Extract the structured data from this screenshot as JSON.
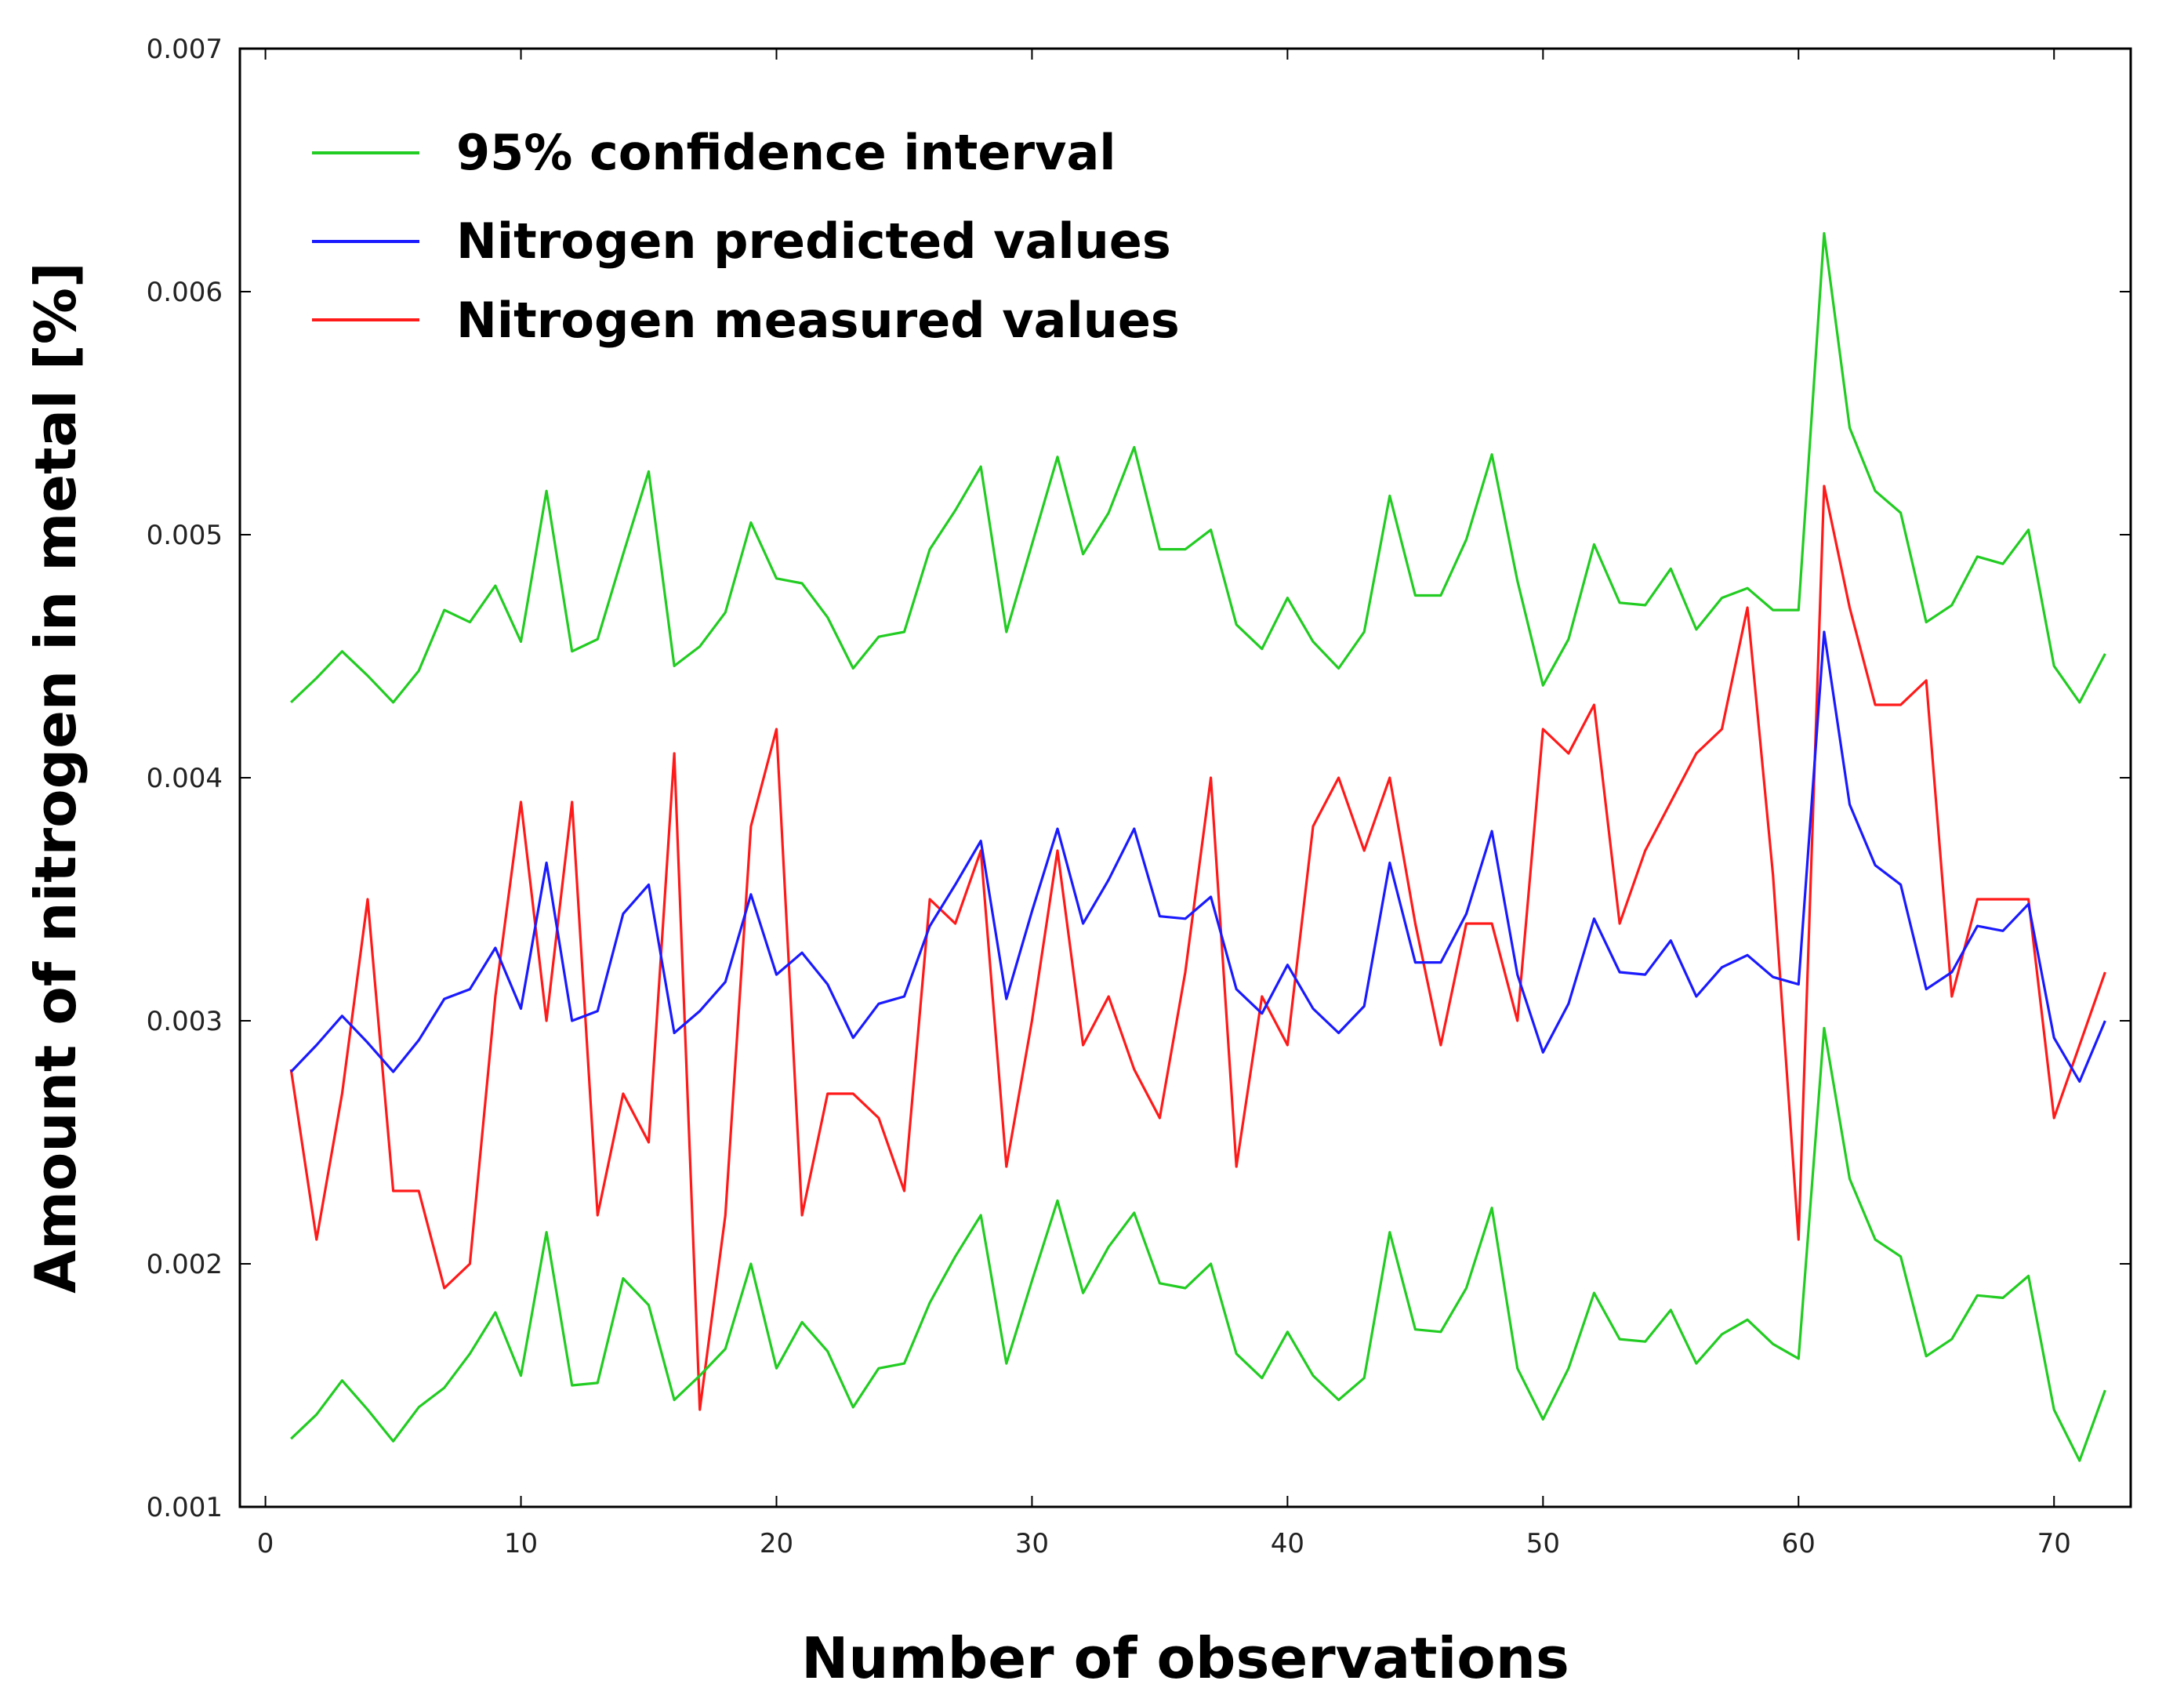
{
  "chart_data": {
    "type": "line",
    "title": "",
    "xlabel": "Number of observations",
    "ylabel": "Amount of nitrogen in metal [%]",
    "xlim": [
      -1,
      73
    ],
    "ylim": [
      0.001,
      0.007
    ],
    "x_ticks": [
      0,
      10,
      20,
      30,
      40,
      50,
      60,
      70
    ],
    "x_tick_labels": [
      "0",
      "10",
      "20",
      "30",
      "40",
      "50",
      "60",
      "70"
    ],
    "y_ticks": [
      0.001,
      0.002,
      0.003,
      0.004,
      0.005,
      0.006,
      0.007
    ],
    "y_tick_labels": [
      "0.001",
      "0.002",
      "0.003",
      "0.004",
      "0.005",
      "0.006",
      "0.007"
    ],
    "grid": false,
    "legend_position": "top-left",
    "x": [
      1,
      2,
      3,
      4,
      5,
      6,
      7,
      8,
      9,
      10,
      11,
      12,
      13,
      14,
      15,
      16,
      17,
      18,
      19,
      20,
      21,
      22,
      23,
      24,
      25,
      26,
      27,
      28,
      29,
      30,
      31,
      32,
      33,
      34,
      35,
      36,
      37,
      38,
      39,
      40,
      41,
      42,
      43,
      44,
      45,
      46,
      47,
      48,
      49,
      50,
      51,
      52,
      53,
      54,
      55,
      56,
      57,
      58,
      59,
      60,
      61,
      62,
      63,
      64,
      65,
      66,
      67,
      68,
      69,
      70,
      71,
      72
    ],
    "series": [
      {
        "name": "95% confidence interval",
        "key": "ci_upper",
        "color": "#22cc22",
        "in_legend": true,
        "values": [
          0.00431,
          0.00441,
          0.00452,
          0.00442,
          0.00431,
          0.00444,
          0.00469,
          0.00464,
          0.00479,
          0.00456,
          0.00518,
          0.00452,
          0.00457,
          0.00492,
          0.00526,
          0.00446,
          0.00454,
          0.00468,
          0.00505,
          0.00482,
          0.0048,
          0.00466,
          0.00445,
          0.00458,
          0.0046,
          0.00494,
          0.0051,
          0.00528,
          0.0046,
          0.00496,
          0.00532,
          0.00492,
          0.00509,
          0.00536,
          0.00494,
          0.00494,
          0.00502,
          0.00463,
          0.00453,
          0.00474,
          0.00456,
          0.00445,
          0.0046,
          0.00516,
          0.00475,
          0.00475,
          0.00498,
          0.00533,
          0.00481,
          0.00438,
          0.00457,
          0.00496,
          0.00472,
          0.00471,
          0.00486,
          0.00461,
          0.00474,
          0.00478,
          0.00469,
          0.00469,
          0.00624,
          0.00544,
          0.00518,
          0.00509,
          0.00464,
          0.00471,
          0.00491,
          0.00488,
          0.00502,
          0.00446,
          0.00431,
          0.00451
        ]
      },
      {
        "name": "95% confidence interval (lower)",
        "key": "ci_lower",
        "color": "#22cc22",
        "in_legend": false,
        "values": [
          0.00128,
          0.00138,
          0.00152,
          0.0014,
          0.00127,
          0.00141,
          0.00149,
          0.00163,
          0.0018,
          0.00154,
          0.00213,
          0.0015,
          0.00151,
          0.00194,
          0.00183,
          0.00144,
          0.00154,
          0.00165,
          0.002,
          0.00157,
          0.00176,
          0.00164,
          0.00141,
          0.00157,
          0.00159,
          0.00184,
          0.00203,
          0.0022,
          0.00159,
          0.00193,
          0.00226,
          0.00188,
          0.00207,
          0.00221,
          0.00192,
          0.0019,
          0.002,
          0.00163,
          0.00153,
          0.00172,
          0.00154,
          0.00144,
          0.00153,
          0.00213,
          0.00173,
          0.00172,
          0.0019,
          0.00223,
          0.00157,
          0.00136,
          0.00157,
          0.00188,
          0.00169,
          0.00168,
          0.00181,
          0.00159,
          0.00171,
          0.00177,
          0.00167,
          0.00161,
          0.00297,
          0.00235,
          0.0021,
          0.00203,
          0.00162,
          0.00169,
          0.00187,
          0.00186,
          0.00195,
          0.0014,
          0.00119,
          0.00148
        ]
      },
      {
        "name": "Nitrogen predicted values",
        "key": "predicted",
        "color": "#1a1aff",
        "in_legend": true,
        "values": [
          0.00279,
          0.0029,
          0.00302,
          0.00291,
          0.00279,
          0.00292,
          0.00309,
          0.00313,
          0.0033,
          0.00305,
          0.00365,
          0.003,
          0.00304,
          0.00344,
          0.00356,
          0.00295,
          0.00304,
          0.00316,
          0.00352,
          0.00319,
          0.00328,
          0.00315,
          0.00293,
          0.00307,
          0.0031,
          0.00339,
          0.00356,
          0.00374,
          0.00309,
          0.00345,
          0.00379,
          0.0034,
          0.00358,
          0.00379,
          0.00343,
          0.00342,
          0.00351,
          0.00313,
          0.00303,
          0.00323,
          0.00305,
          0.00295,
          0.00306,
          0.00365,
          0.00324,
          0.00324,
          0.00344,
          0.00378,
          0.00319,
          0.00287,
          0.00307,
          0.00342,
          0.0032,
          0.00319,
          0.00333,
          0.0031,
          0.00322,
          0.00327,
          0.00318,
          0.00315,
          0.0046,
          0.00389,
          0.00364,
          0.00356,
          0.00313,
          0.0032,
          0.00339,
          0.00337,
          0.00348,
          0.00293,
          0.00275,
          0.003
        ]
      },
      {
        "name": "Nitrogen measured values",
        "key": "measured",
        "color": "#ff1a1a",
        "in_legend": true,
        "values": [
          0.0028,
          0.0021,
          0.0027,
          0.0035,
          0.0023,
          0.0023,
          0.0019,
          0.002,
          0.0031,
          0.0039,
          0.003,
          0.0039,
          0.0022,
          0.0027,
          0.0025,
          0.0041,
          0.0014,
          0.0022,
          0.0038,
          0.0042,
          0.0022,
          0.0027,
          0.0027,
          0.0026,
          0.0023,
          0.0035,
          0.0034,
          0.0037,
          0.0024,
          0.003,
          0.0037,
          0.0029,
          0.0031,
          0.0028,
          0.0026,
          0.0032,
          0.004,
          0.0024,
          0.0031,
          0.0029,
          0.0038,
          0.004,
          0.0037,
          0.004,
          0.0034,
          0.0029,
          0.0034,
          0.0034,
          0.003,
          0.0042,
          0.0041,
          0.0043,
          0.0034,
          0.0037,
          0.0039,
          0.0041,
          0.0042,
          0.0047,
          0.0036,
          0.0021,
          0.0052,
          0.0047,
          0.0043,
          0.0043,
          0.0044,
          0.0031,
          0.0035,
          0.0035,
          0.0035,
          0.0026,
          0.0029,
          0.0032
        ]
      }
    ]
  }
}
